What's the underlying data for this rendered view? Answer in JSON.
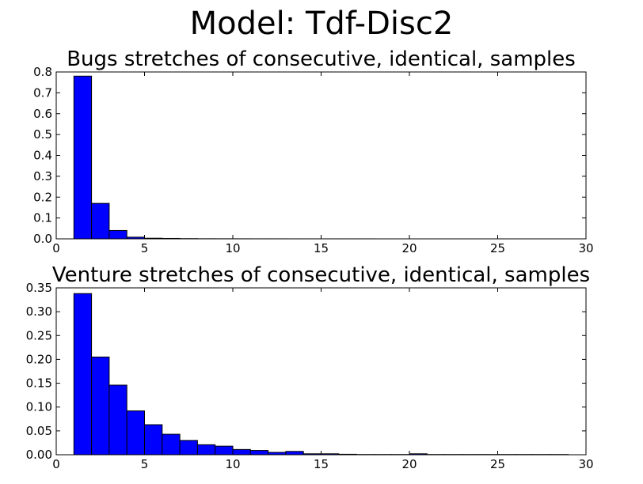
{
  "figure": {
    "suptitle": "Model: Tdf-Disc2"
  },
  "chart_data": [
    {
      "type": "bar",
      "title": "Bugs stretches of consecutive, identical, samples",
      "xlabel": "",
      "ylabel": "",
      "xlim": [
        0,
        30
      ],
      "ylim": [
        0,
        0.8
      ],
      "xticks": [
        0,
        5,
        10,
        15,
        20,
        25,
        30
      ],
      "yticks": [
        0.0,
        0.1,
        0.2,
        0.3,
        0.4,
        0.5,
        0.6,
        0.7,
        0.8
      ],
      "ytick_labels": [
        "0.0",
        "0.1",
        "0.2",
        "0.3",
        "0.4",
        "0.5",
        "0.6",
        "0.7",
        "0.8"
      ],
      "bin_edges": [
        1,
        2,
        3,
        4,
        5,
        6,
        7,
        8,
        9,
        10,
        11,
        12,
        13,
        14,
        15,
        16,
        17,
        18,
        19,
        20,
        21,
        22,
        23,
        24,
        25,
        26,
        27,
        28,
        29
      ],
      "values": [
        0.78,
        0.17,
        0.04,
        0.008,
        0.003,
        0.002,
        0.001,
        0.0005,
        0.0004,
        0.0003,
        0.0002,
        0.0002,
        0.0001,
        0.0001,
        0.0001,
        0.0001,
        0.0001,
        0,
        0,
        0,
        0,
        0,
        0,
        0,
        0,
        0,
        0,
        0
      ],
      "bar_color": "#0000ff",
      "grid": false,
      "legend": "none"
    },
    {
      "type": "bar",
      "title": "Venture stretches of consecutive, identical, samples",
      "xlabel": "",
      "ylabel": "",
      "xlim": [
        0,
        30
      ],
      "ylim": [
        0,
        0.35
      ],
      "xticks": [
        0,
        5,
        10,
        15,
        20,
        25,
        30
      ],
      "yticks": [
        0.0,
        0.05,
        0.1,
        0.15,
        0.2,
        0.25,
        0.3,
        0.35
      ],
      "ytick_labels": [
        "0.00",
        "0.05",
        "0.10",
        "0.15",
        "0.20",
        "0.25",
        "0.30",
        "0.35"
      ],
      "bin_edges": [
        1,
        2,
        3,
        4,
        5,
        6,
        7,
        8,
        9,
        10,
        11,
        12,
        13,
        14,
        15,
        16,
        17,
        18,
        19,
        20,
        21,
        22,
        23,
        24,
        25,
        26,
        27,
        28,
        29
      ],
      "values": [
        0.338,
        0.205,
        0.146,
        0.092,
        0.063,
        0.043,
        0.03,
        0.021,
        0.018,
        0.011,
        0.009,
        0.005,
        0.007,
        0.002,
        0.002,
        0.001,
        0.0005,
        0.0005,
        0.0005,
        0.002,
        0.0005,
        0.0005,
        0.0005,
        0.0005,
        0.0005,
        0.0005,
        0.0005,
        0.0005
      ],
      "bar_color": "#0000ff",
      "grid": false,
      "legend": "none"
    }
  ]
}
